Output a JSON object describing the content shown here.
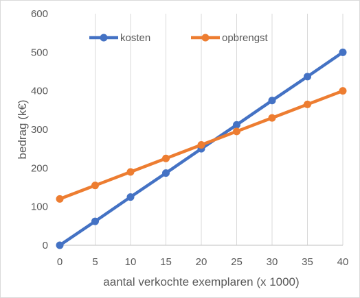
{
  "chart_data": {
    "type": "line",
    "title": "",
    "xlabel": "aantal verkochte exemplaren (x 1000)",
    "ylabel": "bedrag (k€)",
    "x": [
      0,
      5,
      10,
      15,
      20,
      25,
      30,
      35,
      40
    ],
    "x_ticks": [
      "0",
      "5",
      "10",
      "15",
      "20",
      "25",
      "30",
      "35",
      "40"
    ],
    "y_ticks": [
      "0",
      "100",
      "200",
      "300",
      "400",
      "500",
      "600"
    ],
    "xlim": [
      0,
      40
    ],
    "ylim": [
      0,
      600
    ],
    "grid": "vertical",
    "legend_position": "top-left",
    "series": [
      {
        "name": "kosten",
        "color": "#4472C4",
        "values": [
          0,
          62,
          125,
          187,
          250,
          312,
          375,
          437,
          500
        ]
      },
      {
        "name": "opbrengst",
        "color": "#ED7D31",
        "values": [
          120,
          155,
          190,
          225,
          260,
          295,
          330,
          365,
          400
        ]
      }
    ]
  }
}
